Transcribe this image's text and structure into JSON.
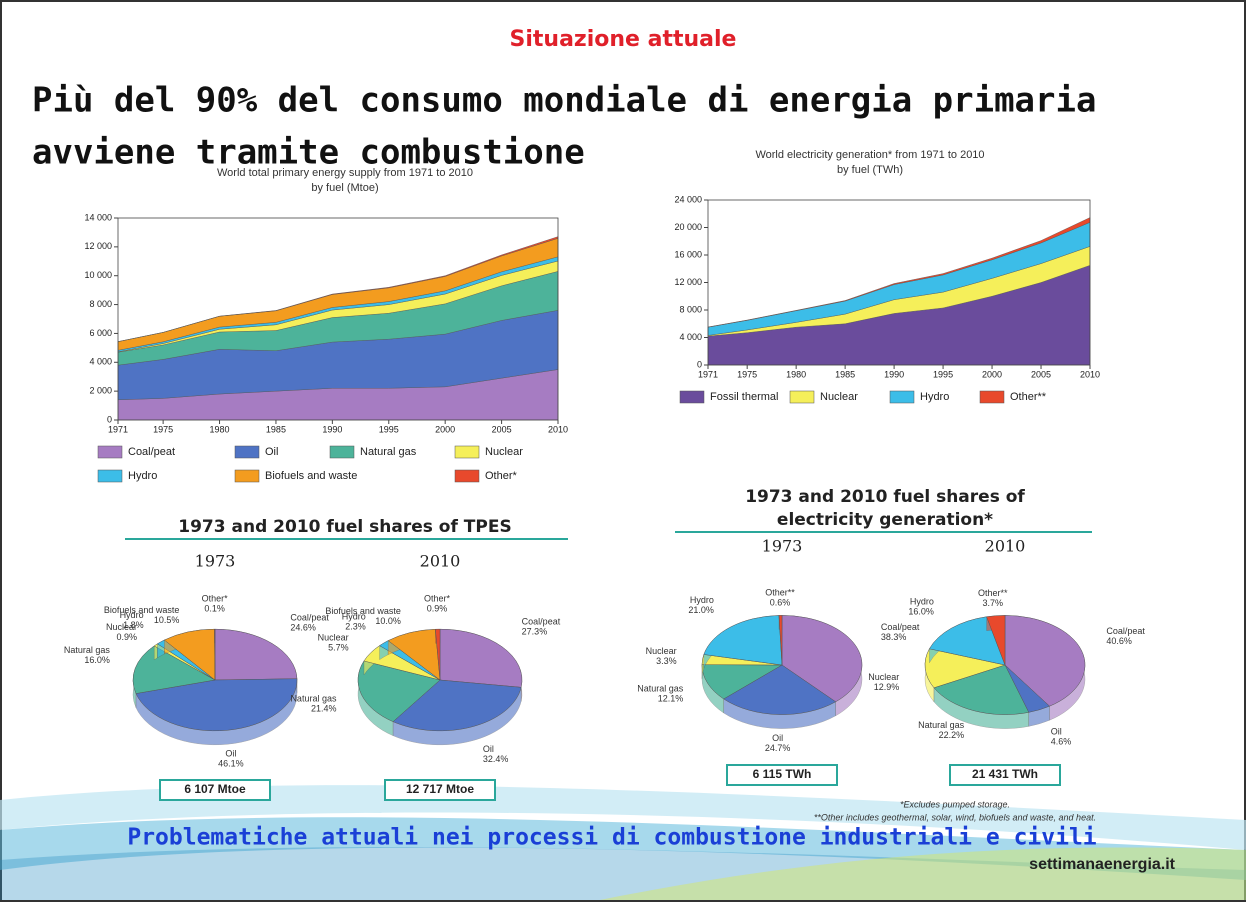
{
  "slide": {
    "header": "Situazione attuale",
    "headline": [
      "Più del 90% del consumo mondiale di energia primaria",
      "avviene tramite combustione"
    ],
    "sections": [
      "1973 and 2010 fuel shares of TPES",
      "1973 and 2010 fuel shares of",
      "electricity generation*"
    ],
    "footnotes": [
      "*Excludes pumped storage.",
      "**Other includes geothermal, solar, wind, biofuels and waste, and heat."
    ],
    "footer": "Problematiche attuali nei processi di combustione industriali e civili",
    "site": "settimanaenergia.it"
  },
  "chart_data": [
    {
      "type": "area",
      "title": "World total primary energy supply from 1971 to 2010",
      "subtitle": "by fuel (Mtoe)",
      "x": [
        1971,
        1975,
        1980,
        1985,
        1990,
        1995,
        2000,
        2005,
        2010
      ],
      "xlim": [
        1971,
        2010
      ],
      "xticks": [
        1971,
        1975,
        1980,
        1985,
        1990,
        1995,
        2000,
        2005,
        2010
      ],
      "ylim": [
        0,
        14000
      ],
      "yticks": [
        0,
        {
          "value": 2000,
          "label": "2 000"
        },
        {
          "value": 4000,
          "label": "4 000"
        },
        {
          "value": 6000,
          "label": "6 000"
        },
        {
          "value": 8000,
          "label": "8 000"
        },
        {
          "value": 10000,
          "label": "10 000"
        },
        {
          "value": 12000,
          "label": "12 000"
        },
        {
          "value": 14000,
          "label": "14 000"
        }
      ],
      "series": [
        {
          "name": "Coal/peat",
          "color": "#a67cc2",
          "values": [
            1400,
            1500,
            1800,
            2000,
            2200,
            2200,
            2300,
            2900,
            3500
          ]
        },
        {
          "name": "Oil",
          "color": "#4f73c4",
          "values": [
            2400,
            2700,
            3100,
            2800,
            3200,
            3400,
            3650,
            4000,
            4100
          ]
        },
        {
          "name": "Natural gas",
          "color": "#4db39a",
          "values": [
            900,
            1000,
            1200,
            1400,
            1700,
            1800,
            2100,
            2400,
            2700
          ]
        },
        {
          "name": "Nuclear",
          "color": "#f5ef5a",
          "values": [
            30,
            100,
            190,
            400,
            520,
            600,
            680,
            720,
            720
          ]
        },
        {
          "name": "Hydro",
          "color": "#3cbde8",
          "values": [
            100,
            120,
            150,
            170,
            180,
            210,
            220,
            250,
            290
          ]
        },
        {
          "name": "Biofuels and waste",
          "color": "#f39c1f",
          "values": [
            600,
            650,
            750,
            800,
            900,
            950,
            1000,
            1100,
            1280
          ]
        },
        {
          "name": "Other*",
          "color": "#e8492c",
          "values": [
            5,
            5,
            10,
            20,
            30,
            40,
            50,
            70,
            120
          ]
        }
      ]
    },
    {
      "type": "area",
      "title": "World electricity generation* from 1971 to 2010",
      "subtitle": "by fuel (TWh)",
      "x": [
        1971,
        1975,
        1980,
        1985,
        1990,
        1995,
        2000,
        2005,
        2010
      ],
      "xlim": [
        1971,
        2010
      ],
      "xticks": [
        1971,
        1975,
        1980,
        1985,
        1990,
        1995,
        2000,
        2005,
        2010
      ],
      "ylim": [
        0,
        24000
      ],
      "yticks": [
        0,
        {
          "value": 4000,
          "label": "4 000"
        },
        {
          "value": 8000,
          "label": "8 000"
        },
        {
          "value": 12000,
          "label": "12 000"
        },
        {
          "value": 16000,
          "label": "16 000"
        },
        {
          "value": 20000,
          "label": "20 000"
        },
        {
          "value": 24000,
          "label": "24 000"
        }
      ],
      "series": [
        {
          "name": "Fossil thermal",
          "color": "#6a4c9c",
          "values": [
            4200,
            4700,
            5500,
            6000,
            7500,
            8300,
            10000,
            12000,
            14500
          ]
        },
        {
          "name": "Nuclear",
          "color": "#f5ef5a",
          "values": [
            100,
            400,
            700,
            1400,
            2000,
            2300,
            2600,
            2750,
            2750
          ]
        },
        {
          "name": "Hydro",
          "color": "#3cbde8",
          "values": [
            1200,
            1400,
            1700,
            1900,
            2200,
            2500,
            2700,
            3000,
            3500
          ]
        },
        {
          "name": "Other**",
          "color": "#e8492c",
          "values": [
            30,
            40,
            50,
            80,
            150,
            200,
            250,
            350,
            700
          ]
        }
      ]
    },
    {
      "type": "pie",
      "title": "1973",
      "total_label": "6 107 Mtoe",
      "categories": [
        "Coal/peat",
        "Oil",
        "Natural gas",
        "Nuclear",
        "Hydro",
        "Biofuels and waste",
        "Other*"
      ],
      "values": [
        24.6,
        46.1,
        16.0,
        0.9,
        1.8,
        10.5,
        0.1
      ],
      "value_labels": [
        "24.6%",
        "46.1%",
        "16.0%",
        "0.9%",
        "1.8%",
        "10.5%",
        "0.1%"
      ],
      "colors": [
        "#a67cc2",
        "#4f73c4",
        "#4db39a",
        "#f5ef5a",
        "#3cbde8",
        "#f39c1f",
        "#e8492c"
      ]
    },
    {
      "type": "pie",
      "title": "2010",
      "total_label": "12 717 Mtoe",
      "categories": [
        "Coal/peat",
        "Oil",
        "Natural gas",
        "Nuclear",
        "Hydro",
        "Biofuels and waste",
        "Other*"
      ],
      "values": [
        27.3,
        32.4,
        21.4,
        5.7,
        2.3,
        10.0,
        0.9
      ],
      "value_labels": [
        "27.3%",
        "32.4%",
        "21.4%",
        "5.7%",
        "2.3%",
        "10.0%",
        "0.9%"
      ],
      "colors": [
        "#a67cc2",
        "#4f73c4",
        "#4db39a",
        "#f5ef5a",
        "#3cbde8",
        "#f39c1f",
        "#e8492c"
      ]
    },
    {
      "type": "pie",
      "title": "1973",
      "total_label": "6 115 TWh",
      "categories": [
        "Coal/peat",
        "Oil",
        "Natural gas",
        "Nuclear",
        "Hydro",
        "Other**"
      ],
      "values": [
        38.3,
        24.7,
        12.1,
        3.3,
        21.0,
        0.6
      ],
      "value_labels": [
        "38.3%",
        "24.7%",
        "12.1%",
        "3.3%",
        "21.0%",
        "0.6%"
      ],
      "colors": [
        "#a67cc2",
        "#4f73c4",
        "#4db39a",
        "#f5ef5a",
        "#3cbde8",
        "#e8492c"
      ]
    },
    {
      "type": "pie",
      "title": "2010",
      "total_label": "21 431 TWh",
      "categories": [
        "Coal/peat",
        "Oil",
        "Natural gas",
        "Nuclear",
        "Hydro",
        "Other**"
      ],
      "values": [
        40.6,
        4.6,
        22.2,
        12.9,
        16.0,
        3.7
      ],
      "value_labels": [
        "40.6%",
        "4.6%",
        "22.2%",
        "12.9%",
        "16.0%",
        "3.7%"
      ],
      "colors": [
        "#a67cc2",
        "#4f73c4",
        "#4db39a",
        "#f5ef5a",
        "#3cbde8",
        "#e8492c"
      ]
    }
  ]
}
